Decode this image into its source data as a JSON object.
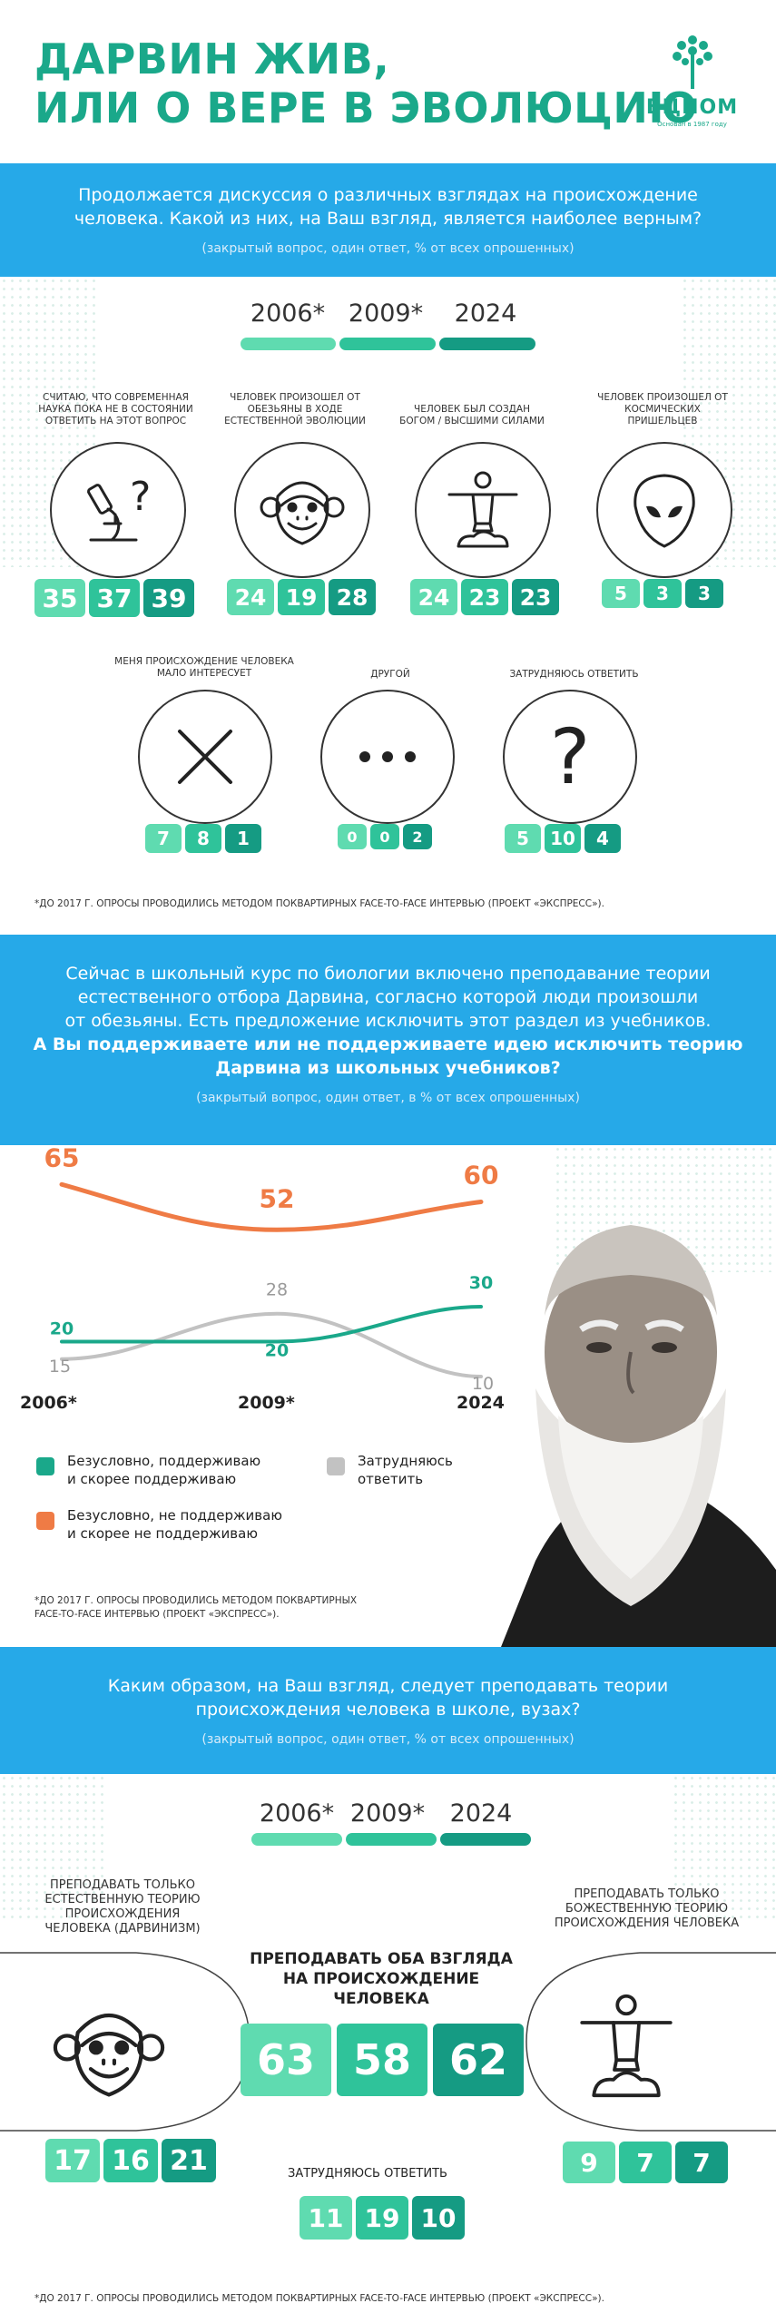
{
  "header": {
    "title_line1": "ДАРВИН ЖИВ,",
    "title_line2": "ИЛИ О ВЕРЕ В ЭВОЛЮЦИЮ",
    "logo_name": "ВЦИОМ",
    "logo_sub": "Основан в 1987 году",
    "accent_color": "#1aa88a"
  },
  "section1": {
    "question_line1": "Продолжается дискуссия о различных взглядах на происхождение",
    "question_line2": "человека. Какой из них, на Ваш взгляд, является наиболее верным?",
    "note": "(закрытый вопрос, один ответ, % от всех опрошенных)",
    "years": [
      "2006*",
      "2009*",
      "2024"
    ],
    "items": [
      {
        "caption": "Считаю, что современная наука пока не в состоянии ответить на этот вопрос",
        "icon": "microscope-question-icon",
        "values": [
          "35",
          "37",
          "39"
        ]
      },
      {
        "caption": "Человек произошел от обезьяны в ходе естественной эволюции",
        "icon": "monkey-icon",
        "values": [
          "24",
          "19",
          "28"
        ]
      },
      {
        "caption": "Человек был создан Богом / высшими силами",
        "icon": "christ-statue-icon",
        "values": [
          "24",
          "23",
          "23"
        ]
      },
      {
        "caption": "Человек произошел от космических пришельцев",
        "icon": "alien-icon",
        "values": [
          "5",
          "3",
          "3"
        ]
      },
      {
        "caption": "Меня происхождение человека мало интересует",
        "icon": "cross-icon",
        "values": [
          "7",
          "8",
          "1"
        ]
      },
      {
        "caption": "Другой",
        "icon": "ellipsis-icon",
        "values": [
          "0",
          "0",
          "2"
        ]
      },
      {
        "caption": "Затрудняюсь ответить",
        "icon": "question-mark-icon",
        "values": [
          "5",
          "10",
          "4"
        ]
      }
    ],
    "footnote": "*До 2017 г. опросы проводились методом поквартирных face-to-face интервью (проект «Экспресс»)."
  },
  "section2": {
    "question_line1": "Сейчас в школьный курс по биологии включено преподавание теории",
    "question_line2": "естественного отбора Дарвина, согласно которой люди произошли",
    "question_line3": "от обезьяны. Есть предложение исключить этот раздел из учебников.",
    "question_bold1": "А Вы поддерживаете или не поддерживаете идею исключить теорию",
    "question_bold2": "Дарвина из школьных учебников?",
    "note": "(закрытый вопрос, один ответ, в % от всех опрошенных)",
    "footnote_line1": "*До 2017 г. опросы проводились методом поквартирных",
    "footnote_line2": "face-to-face интервью (проект «Экспресс»).",
    "legend": {
      "support_line1": "Безусловно, поддерживаю",
      "support_line2": "и скорее поддерживаю",
      "oppose_line1": "Безусловно, не поддерживаю",
      "oppose_line2": "и скорее не поддерживаю",
      "unsure_line1": "Затрудняюсь",
      "unsure_line2": "ответить"
    }
  },
  "chart_data": {
    "type": "line",
    "x": [
      "2006*",
      "2009*",
      "2024"
    ],
    "series": [
      {
        "name": "Безусловно, не поддерживаю и скорее не поддерживаю",
        "values": [
          65,
          52,
          60
        ],
        "color": "#ef7b45"
      },
      {
        "name": "Затрудняюсь ответить",
        "values": [
          15,
          28,
          10
        ],
        "color": "#c2c2c2"
      },
      {
        "name": "Безусловно, поддерживаю и скорее поддерживаю",
        "values": [
          20,
          20,
          30
        ],
        "color": "#1aa88a"
      }
    ],
    "legend_position": "bottom-left"
  },
  "section3": {
    "question_line1": "Каким образом, на Ваш взгляд, следует преподавать теории",
    "question_line2": "происхождения человека в школе, вузах?",
    "note": "(закрытый вопрос, один ответ, % от всех опрошенных)",
    "years": [
      "2006*",
      "2009*",
      "2024"
    ],
    "left_caption": "Преподавать только естественную теорию происхождения человека (дарвинизм)",
    "left_values": [
      "17",
      "16",
      "21"
    ],
    "center_caption": "Преподавать оба взгляда на происхождение человека",
    "center_values": [
      "63",
      "58",
      "62"
    ],
    "right_caption": "Преподавать только божественную теорию происхождения человека",
    "right_values": [
      "9",
      "7",
      "7"
    ],
    "unsure_caption": "Затрудняюсь ответить",
    "unsure_values": [
      "11",
      "19",
      "10"
    ],
    "footnote": "*До 2017 г. опросы проводились методом поквартирных face-to-face интервью (проект «Экспресс»)."
  }
}
